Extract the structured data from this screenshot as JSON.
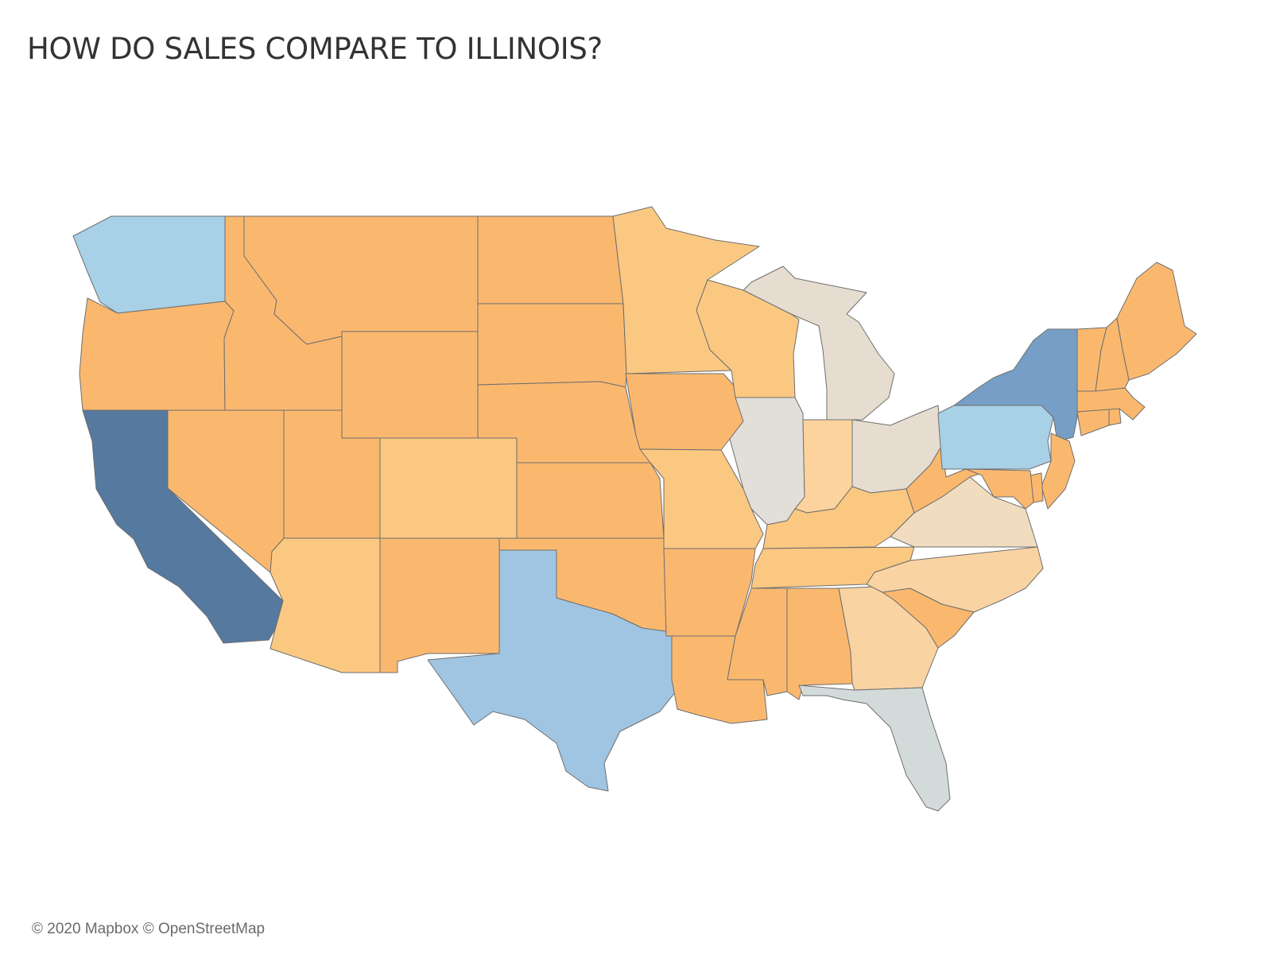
{
  "title": "HOW DO SALES COMPARE TO ILLINOIS?",
  "attribution": "© 2020 Mapbox © OpenStreetMap",
  "palette": {
    "dark_blue": "#55799f",
    "mid_blue": "#779ec6",
    "light_blue": "#a8d0e6",
    "sky_blue": "#a0c5e2",
    "neutral_gray": "#e2dfd8",
    "neutral_beige": "#e6ddd0",
    "neutral_blue_gray": "#d2dbda",
    "light_orange": "#fbc882",
    "orange": "#fab86f",
    "pale_orange": "#fdd39d",
    "peach": "#f9d3a2",
    "beige_peach": "#f2dcbf",
    "outline": "#6e6e6e"
  },
  "map": {
    "reference_state": "Illinois",
    "states": [
      {
        "name": "Washington",
        "color": "light_blue"
      },
      {
        "name": "Oregon",
        "color": "orange"
      },
      {
        "name": "California",
        "color": "dark_blue"
      },
      {
        "name": "Idaho",
        "color": "orange"
      },
      {
        "name": "Nevada",
        "color": "orange"
      },
      {
        "name": "Montana",
        "color": "orange"
      },
      {
        "name": "Wyoming",
        "color": "orange"
      },
      {
        "name": "Utah",
        "color": "orange"
      },
      {
        "name": "Arizona",
        "color": "light_orange"
      },
      {
        "name": "Colorado",
        "color": "light_orange"
      },
      {
        "name": "New Mexico",
        "color": "orange"
      },
      {
        "name": "North Dakota",
        "color": "orange"
      },
      {
        "name": "South Dakota",
        "color": "orange"
      },
      {
        "name": "Nebraska",
        "color": "orange"
      },
      {
        "name": "Kansas",
        "color": "orange"
      },
      {
        "name": "Oklahoma",
        "color": "orange"
      },
      {
        "name": "Texas",
        "color": "sky_blue"
      },
      {
        "name": "Minnesota",
        "color": "light_orange"
      },
      {
        "name": "Iowa",
        "color": "orange"
      },
      {
        "name": "Missouri",
        "color": "light_orange"
      },
      {
        "name": "Arkansas",
        "color": "orange"
      },
      {
        "name": "Louisiana",
        "color": "orange"
      },
      {
        "name": "Wisconsin",
        "color": "light_orange"
      },
      {
        "name": "Illinois",
        "color": "neutral_gray"
      },
      {
        "name": "Michigan",
        "color": "neutral_beige"
      },
      {
        "name": "Indiana",
        "color": "pale_orange"
      },
      {
        "name": "Ohio",
        "color": "neutral_beige"
      },
      {
        "name": "Kentucky",
        "color": "light_orange"
      },
      {
        "name": "Tennessee",
        "color": "light_orange"
      },
      {
        "name": "Mississippi",
        "color": "orange"
      },
      {
        "name": "Alabama",
        "color": "orange"
      },
      {
        "name": "Georgia",
        "color": "peach"
      },
      {
        "name": "Florida",
        "color": "neutral_blue_gray"
      },
      {
        "name": "South Carolina",
        "color": "orange"
      },
      {
        "name": "North Carolina",
        "color": "peach"
      },
      {
        "name": "Virginia",
        "color": "beige_peach"
      },
      {
        "name": "West Virginia",
        "color": "orange"
      },
      {
        "name": "Pennsylvania",
        "color": "light_blue"
      },
      {
        "name": "New York",
        "color": "mid_blue"
      },
      {
        "name": "New Jersey",
        "color": "orange"
      },
      {
        "name": "Delaware",
        "color": "orange"
      },
      {
        "name": "Maryland",
        "color": "orange"
      },
      {
        "name": "Connecticut",
        "color": "orange"
      },
      {
        "name": "Rhode Island",
        "color": "orange"
      },
      {
        "name": "Massachusetts",
        "color": "orange"
      },
      {
        "name": "Vermont",
        "color": "orange"
      },
      {
        "name": "New Hampshire",
        "color": "orange"
      },
      {
        "name": "Maine",
        "color": "orange"
      }
    ]
  }
}
